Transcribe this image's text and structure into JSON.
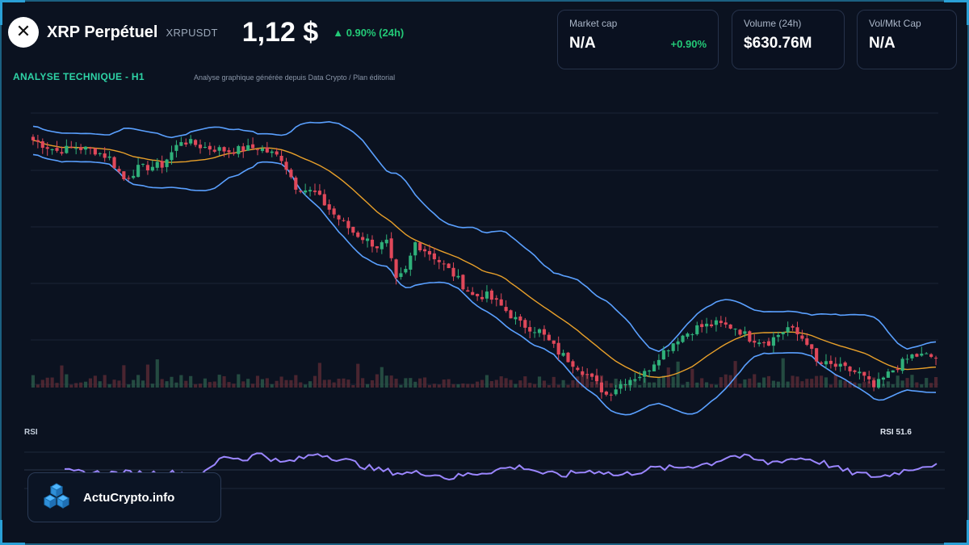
{
  "header": {
    "title": "XRP Perpétuel",
    "ticker": "XRPUSDT",
    "price": "1,12 $",
    "change": "▲ 0.90% (24h)",
    "logo_glyph": "✕"
  },
  "stats": [
    {
      "label": "Market cap",
      "value": "N/A",
      "delta": "+0.90%"
    },
    {
      "label": "Volume (24h)",
      "value": "$630.76M"
    },
    {
      "label": "Vol/Mkt Cap",
      "value": "N/A"
    }
  ],
  "analysis": {
    "title": "ANALYSE TECHNIQUE - H1",
    "subtitle": "Analyse graphique générée depuis Data Crypto / Plan éditorial"
  },
  "rsi": {
    "label": "RSI",
    "value_text": "RSI 51.6"
  },
  "brand": {
    "name": "ActuCrypto.info",
    "icon": "cubes-icon"
  },
  "colors": {
    "background": "#0b1220",
    "up": "#2fb07a",
    "down": "#e0485a",
    "bollinger": "#5aa0ff",
    "ma": "#e8a02a",
    "rsi_line": "#9b86ff",
    "accent": "#23c977"
  },
  "chart_data": {
    "type": "candlestick",
    "timeframe": "H1",
    "ylim": [
      1.05,
      1.45
    ],
    "overlays": [
      "bollinger_bands",
      "moving_average",
      "volume"
    ],
    "close_path": [
      [
        0,
        1.4
      ],
      [
        5,
        1.385
      ],
      [
        9,
        1.39
      ],
      [
        13,
        1.385
      ],
      [
        16,
        1.375
      ],
      [
        19,
        1.345
      ],
      [
        22,
        1.36
      ],
      [
        27,
        1.365
      ],
      [
        31,
        1.4
      ],
      [
        36,
        1.39
      ],
      [
        41,
        1.385
      ],
      [
        47,
        1.39
      ],
      [
        52,
        1.375
      ],
      [
        55,
        1.335
      ],
      [
        59,
        1.325
      ],
      [
        63,
        1.295
      ],
      [
        67,
        1.27
      ],
      [
        72,
        1.25
      ],
      [
        74,
        1.255
      ],
      [
        76,
        1.2
      ],
      [
        78,
        1.215
      ],
      [
        80,
        1.255
      ],
      [
        84,
        1.235
      ],
      [
        88,
        1.21
      ],
      [
        92,
        1.18
      ],
      [
        95,
        1.18
      ],
      [
        98,
        1.165
      ],
      [
        102,
        1.14
      ],
      [
        106,
        1.13
      ],
      [
        110,
        1.1
      ],
      [
        114,
        1.08
      ],
      [
        118,
        1.055
      ],
      [
        120,
        1.04
      ],
      [
        124,
        1.06
      ],
      [
        128,
        1.07
      ],
      [
        131,
        1.095
      ],
      [
        135,
        1.12
      ],
      [
        139,
        1.135
      ],
      [
        143,
        1.14
      ],
      [
        147,
        1.135
      ],
      [
        150,
        1.12
      ],
      [
        154,
        1.115
      ],
      [
        158,
        1.135
      ],
      [
        162,
        1.115
      ],
      [
        164,
        1.085
      ],
      [
        168,
        1.08
      ],
      [
        173,
        1.07
      ],
      [
        176,
        1.05
      ],
      [
        180,
        1.075
      ],
      [
        184,
        1.095
      ],
      [
        187,
        1.095
      ]
    ],
    "rsi": {
      "ylim": [
        0,
        100
      ],
      "last": 51.6,
      "points": [
        [
          0,
          45
        ],
        [
          8,
          44
        ],
        [
          16,
          44
        ],
        [
          24,
          44
        ],
        [
          30,
          44
        ],
        [
          34,
          58
        ],
        [
          38,
          55
        ],
        [
          42,
          60
        ],
        [
          46,
          52
        ],
        [
          50,
          55
        ],
        [
          54,
          60
        ],
        [
          58,
          56
        ],
        [
          62,
          52
        ],
        [
          66,
          47
        ],
        [
          72,
          44
        ],
        [
          78,
          44
        ],
        [
          82,
          40
        ],
        [
          86,
          43
        ],
        [
          90,
          45
        ],
        [
          94,
          48
        ],
        [
          98,
          49
        ],
        [
          102,
          44
        ],
        [
          106,
          42
        ],
        [
          110,
          45
        ],
        [
          114,
          46
        ],
        [
          118,
          42
        ],
        [
          122,
          45
        ],
        [
          126,
          48
        ],
        [
          130,
          48
        ],
        [
          134,
          50
        ],
        [
          138,
          52
        ],
        [
          142,
          58
        ],
        [
          146,
          56
        ],
        [
          150,
          52
        ],
        [
          154,
          55
        ],
        [
          158,
          56
        ],
        [
          162,
          52
        ],
        [
          166,
          46
        ],
        [
          170,
          43
        ],
        [
          174,
          41
        ],
        [
          178,
          45
        ],
        [
          182,
          49
        ],
        [
          186,
          51.6
        ]
      ]
    }
  }
}
